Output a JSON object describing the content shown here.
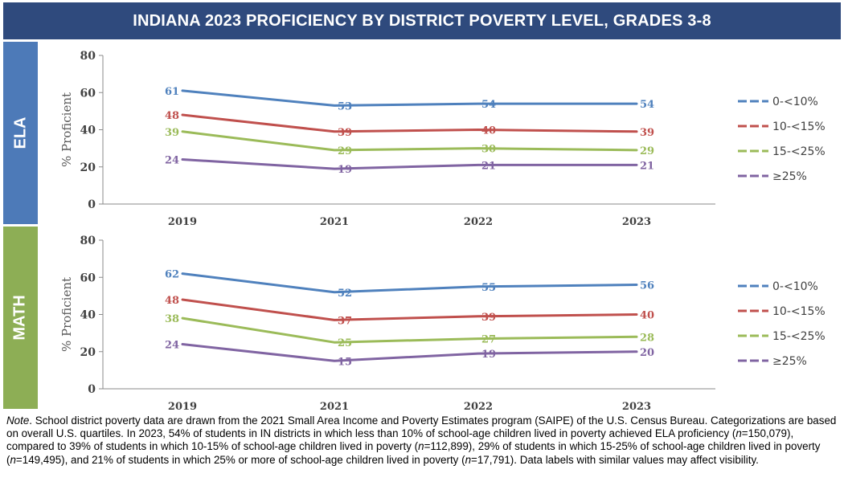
{
  "title": "INDIANA 2023 PROFICIENCY BY DISTRICT POVERTY LEVEL, GRADES 3-8",
  "panels": {
    "ela": "ELA",
    "math": "MATH"
  },
  "colors": {
    "banner": "#2f4a7d",
    "ela_side": "#4d7ab8",
    "math_side": "#8dae55"
  },
  "chart_data": [
    {
      "type": "line",
      "panel": "ELA",
      "x": [
        "2019",
        "2021",
        "2022",
        "2023"
      ],
      "ylabel": "% Proficient",
      "ylim": [
        0,
        80
      ],
      "yticks": [
        0,
        20,
        40,
        60,
        80
      ],
      "grid": false,
      "legend": "right",
      "series": [
        {
          "name": "0-<10%",
          "color": "#4f81bd",
          "values": [
            61,
            53,
            54,
            54
          ]
        },
        {
          "name": "10-<15%",
          "color": "#c0504d",
          "values": [
            48,
            39,
            40,
            39
          ]
        },
        {
          "name": "15-<25%",
          "color": "#9bbb59",
          "values": [
            39,
            29,
            30,
            29
          ]
        },
        {
          "name": "≥25%",
          "color": "#8064a2",
          "values": [
            24,
            19,
            21,
            21
          ]
        }
      ]
    },
    {
      "type": "line",
      "panel": "MATH",
      "x": [
        "2019",
        "2021",
        "2022",
        "2023"
      ],
      "ylabel": "% Proficient",
      "ylim": [
        0,
        80
      ],
      "yticks": [
        0,
        20,
        40,
        60,
        80
      ],
      "grid": false,
      "legend": "right",
      "series": [
        {
          "name": "0-<10%",
          "color": "#4f81bd",
          "values": [
            62,
            52,
            55,
            56
          ]
        },
        {
          "name": "10-<15%",
          "color": "#c0504d",
          "values": [
            48,
            37,
            39,
            40
          ]
        },
        {
          "name": "15-<25%",
          "color": "#9bbb59",
          "values": [
            38,
            25,
            27,
            28
          ]
        },
        {
          "name": "≥25%",
          "color": "#8064a2",
          "values": [
            24,
            15,
            19,
            20
          ]
        }
      ]
    }
  ],
  "note": {
    "label": "Note",
    "segments": [
      {
        "t": ". School district poverty data are drawn from the 2021 Small Area Income and Poverty Estimates program (SAIPE) of the U.S. Census Bureau. Categorizations are based on overall U.S. quartiles. In 2023, 54% of students in IN districts in which less than 10% of school-age children lived in poverty achieved ELA proficiency ("
      },
      {
        "t": "n",
        "i": true
      },
      {
        "t": "=150,079), compared to 39% of students in which 10-15% of school-age children lived in poverty ("
      },
      {
        "t": "n",
        "i": true
      },
      {
        "t": "=112,899), 29% of students in which 15-25% of school-age children lived in poverty ("
      },
      {
        "t": "n",
        "i": true
      },
      {
        "t": "=149,495), and 21% of students in which 25% or more of school-age children lived in poverty ("
      },
      {
        "t": "n",
        "i": true
      },
      {
        "t": "=17,791). Data labels with similar values may affect visibility."
      }
    ]
  }
}
